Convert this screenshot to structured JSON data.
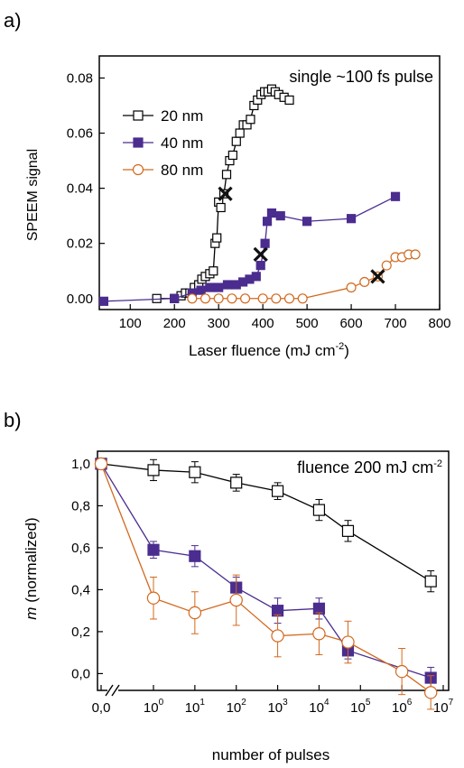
{
  "chart_data": [
    {
      "type": "scatter",
      "panel_label": "a)",
      "annotation": "single ~100 fs pulse",
      "xlabel_main": "Laser fluence (mJ cm",
      "xlabel_sup": "-2",
      "xlabel_end": ")",
      "ylabel": "SPEEM signal",
      "xlim": [
        30,
        800
      ],
      "ylim": [
        -0.004,
        0.088
      ],
      "x_ticks": [
        "100",
        "200",
        "300",
        "400",
        "500",
        "600",
        "700",
        "800"
      ],
      "y_ticks": [
        "0.00",
        "0.02",
        "0.04",
        "0.06",
        "0.08"
      ],
      "legend_position": "top-left",
      "series": [
        {
          "name": "20 nm",
          "marker": "open-square",
          "color": "#000000",
          "points": [
            [
              160,
              0.0
            ],
            [
              200,
              0.0
            ],
            [
              215,
              0.001
            ],
            [
              225,
              0.002
            ],
            [
              235,
              0.002
            ],
            [
              245,
              0.004
            ],
            [
              255,
              0.005
            ],
            [
              262,
              0.007
            ],
            [
              270,
              0.008
            ],
            [
              280,
              0.009
            ],
            [
              288,
              0.01
            ],
            [
              292,
              0.02
            ],
            [
              296,
              0.022
            ],
            [
              300,
              0.035
            ],
            [
              305,
              0.033
            ],
            [
              312,
              0.038
            ],
            [
              318,
              0.045
            ],
            [
              325,
              0.05
            ],
            [
              332,
              0.052
            ],
            [
              340,
              0.057
            ],
            [
              348,
              0.06
            ],
            [
              356,
              0.063
            ],
            [
              364,
              0.063
            ],
            [
              372,
              0.065
            ],
            [
              380,
              0.07
            ],
            [
              388,
              0.072
            ],
            [
              396,
              0.074
            ],
            [
              404,
              0.075
            ],
            [
              412,
              0.075
            ],
            [
              420,
              0.076
            ],
            [
              428,
              0.075
            ],
            [
              436,
              0.074
            ],
            [
              448,
              0.073
            ],
            [
              460,
              0.072
            ]
          ]
        },
        {
          "name": "40 nm",
          "marker": "filled-square",
          "color": "#4b2d8f",
          "points": [
            [
              40,
              -0.001
            ],
            [
              200,
              0.0
            ],
            [
              240,
              0.002
            ],
            [
              260,
              0.003
            ],
            [
              280,
              0.004
            ],
            [
              300,
              0.004
            ],
            [
              320,
              0.005
            ],
            [
              340,
              0.005
            ],
            [
              355,
              0.006
            ],
            [
              370,
              0.007
            ],
            [
              385,
              0.008
            ],
            [
              395,
              0.012
            ],
            [
              405,
              0.02
            ],
            [
              410,
              0.028
            ],
            [
              420,
              0.031
            ],
            [
              440,
              0.03
            ],
            [
              500,
              0.028
            ],
            [
              600,
              0.029
            ],
            [
              700,
              0.037
            ]
          ]
        },
        {
          "name": "80 nm",
          "marker": "open-circle",
          "color": "#d2691e",
          "points": [
            [
              240,
              0.0
            ],
            [
              270,
              0.0
            ],
            [
              300,
              0.0
            ],
            [
              330,
              0.0
            ],
            [
              360,
              0.0
            ],
            [
              400,
              0.0
            ],
            [
              430,
              0.0
            ],
            [
              460,
              0.0
            ],
            [
              490,
              0.0
            ],
            [
              600,
              0.004
            ],
            [
              630,
              0.006
            ],
            [
              660,
              0.008
            ],
            [
              680,
              0.012
            ],
            [
              700,
              0.015
            ],
            [
              715,
              0.015
            ],
            [
              730,
              0.016
            ],
            [
              745,
              0.016
            ]
          ]
        }
      ],
      "markers_x": [
        [
          315,
          0.038
        ],
        [
          395,
          0.016
        ],
        [
          660,
          0.008
        ]
      ]
    },
    {
      "type": "line",
      "panel_label": "b)",
      "annotation_main": "fluence 200 mJ cm",
      "annotation_sup": "-2",
      "xlabel": "number of pulses",
      "ylabel_italic": "m",
      "ylabel_rest": " (normalized)",
      "x_scale": "log with axis break (first tick at 0)",
      "x_ticks": [
        {
          "base": "0,0",
          "exp": ""
        },
        {
          "base": "10",
          "exp": "0"
        },
        {
          "base": "10",
          "exp": "1"
        },
        {
          "base": "10",
          "exp": "2"
        },
        {
          "base": "10",
          "exp": "3"
        },
        {
          "base": "10",
          "exp": "4"
        },
        {
          "base": "10",
          "exp": "5"
        },
        {
          "base": "10",
          "exp": "6"
        },
        {
          "base": "10",
          "exp": "7"
        }
      ],
      "y_ticks": [
        "0,0",
        "0,2",
        "0,4",
        "0,6",
        "0,8",
        "1,0"
      ],
      "ylim": [
        -0.08,
        1.06
      ],
      "series": [
        {
          "name": "20 nm",
          "marker": "open-square",
          "color": "#000000",
          "points": [
            {
              "n": 0,
              "y": 1.0,
              "err": 0.0
            },
            {
              "n": 1,
              "y": 0.97,
              "err": 0.05
            },
            {
              "n": 10,
              "y": 0.96,
              "err": 0.05
            },
            {
              "n": 100,
              "y": 0.91,
              "err": 0.04
            },
            {
              "n": 1000,
              "y": 0.87,
              "err": 0.04
            },
            {
              "n": 10000,
              "y": 0.78,
              "err": 0.05
            },
            {
              "n": 50000,
              "y": 0.68,
              "err": 0.05
            },
            {
              "n": 5000000,
              "y": 0.44,
              "err": 0.05
            }
          ]
        },
        {
          "name": "40 nm",
          "marker": "filled-square",
          "color": "#4b2d8f",
          "points": [
            {
              "n": 0,
              "y": 1.0,
              "err": 0.0
            },
            {
              "n": 1,
              "y": 0.59,
              "err": 0.04
            },
            {
              "n": 10,
              "y": 0.56,
              "err": 0.05
            },
            {
              "n": 100,
              "y": 0.41,
              "err": 0.05
            },
            {
              "n": 1000,
              "y": 0.3,
              "err": 0.06
            },
            {
              "n": 10000,
              "y": 0.31,
              "err": 0.05
            },
            {
              "n": 50000,
              "y": 0.11,
              "err": 0.04
            },
            {
              "n": 5000000,
              "y": -0.02,
              "err": 0.05
            }
          ]
        },
        {
          "name": "80 nm",
          "marker": "open-circle",
          "color": "#d2691e",
          "points": [
            {
              "n": 0,
              "y": 1.0,
              "err": 0.0
            },
            {
              "n": 1,
              "y": 0.36,
              "err": 0.1
            },
            {
              "n": 10,
              "y": 0.29,
              "err": 0.1
            },
            {
              "n": 100,
              "y": 0.35,
              "err": 0.12
            },
            {
              "n": 1000,
              "y": 0.18,
              "err": 0.1
            },
            {
              "n": 10000,
              "y": 0.19,
              "err": 0.1
            },
            {
              "n": 50000,
              "y": 0.15,
              "err": 0.1
            },
            {
              "n": 1000000,
              "y": 0.01,
              "err": 0.11
            },
            {
              "n": 5000000,
              "y": -0.09,
              "err": 0.08
            }
          ]
        }
      ]
    }
  ]
}
